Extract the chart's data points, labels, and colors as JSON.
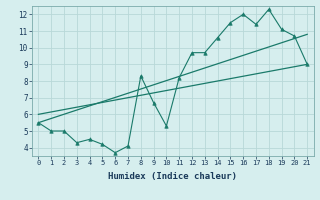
{
  "xlabel": "Humidex (Indice chaleur)",
  "background_color": "#d6eeee",
  "grid_color": "#b8d8d8",
  "line_color": "#1a7a6a",
  "xlim": [
    -0.5,
    21.5
  ],
  "ylim": [
    3.5,
    12.5
  ],
  "xticks": [
    0,
    1,
    2,
    3,
    4,
    5,
    6,
    7,
    8,
    9,
    10,
    11,
    12,
    13,
    14,
    15,
    16,
    17,
    18,
    19,
    20,
    21
  ],
  "yticks": [
    4,
    5,
    6,
    7,
    8,
    9,
    10,
    11,
    12
  ],
  "data_x": [
    0,
    1,
    2,
    3,
    4,
    5,
    6,
    7,
    8,
    9,
    10,
    11,
    12,
    13,
    14,
    15,
    16,
    17,
    18,
    19,
    20,
    21
  ],
  "data_y": [
    5.5,
    5.0,
    5.0,
    4.3,
    4.5,
    4.2,
    3.7,
    4.1,
    8.3,
    6.7,
    5.3,
    8.2,
    9.7,
    9.7,
    10.6,
    11.5,
    12.0,
    11.4,
    12.3,
    11.1,
    10.7,
    9.0
  ],
  "line1_x": [
    0,
    21
  ],
  "line1_y": [
    5.5,
    10.8
  ],
  "line2_x": [
    0,
    21
  ],
  "line2_y": [
    6.0,
    9.0
  ]
}
